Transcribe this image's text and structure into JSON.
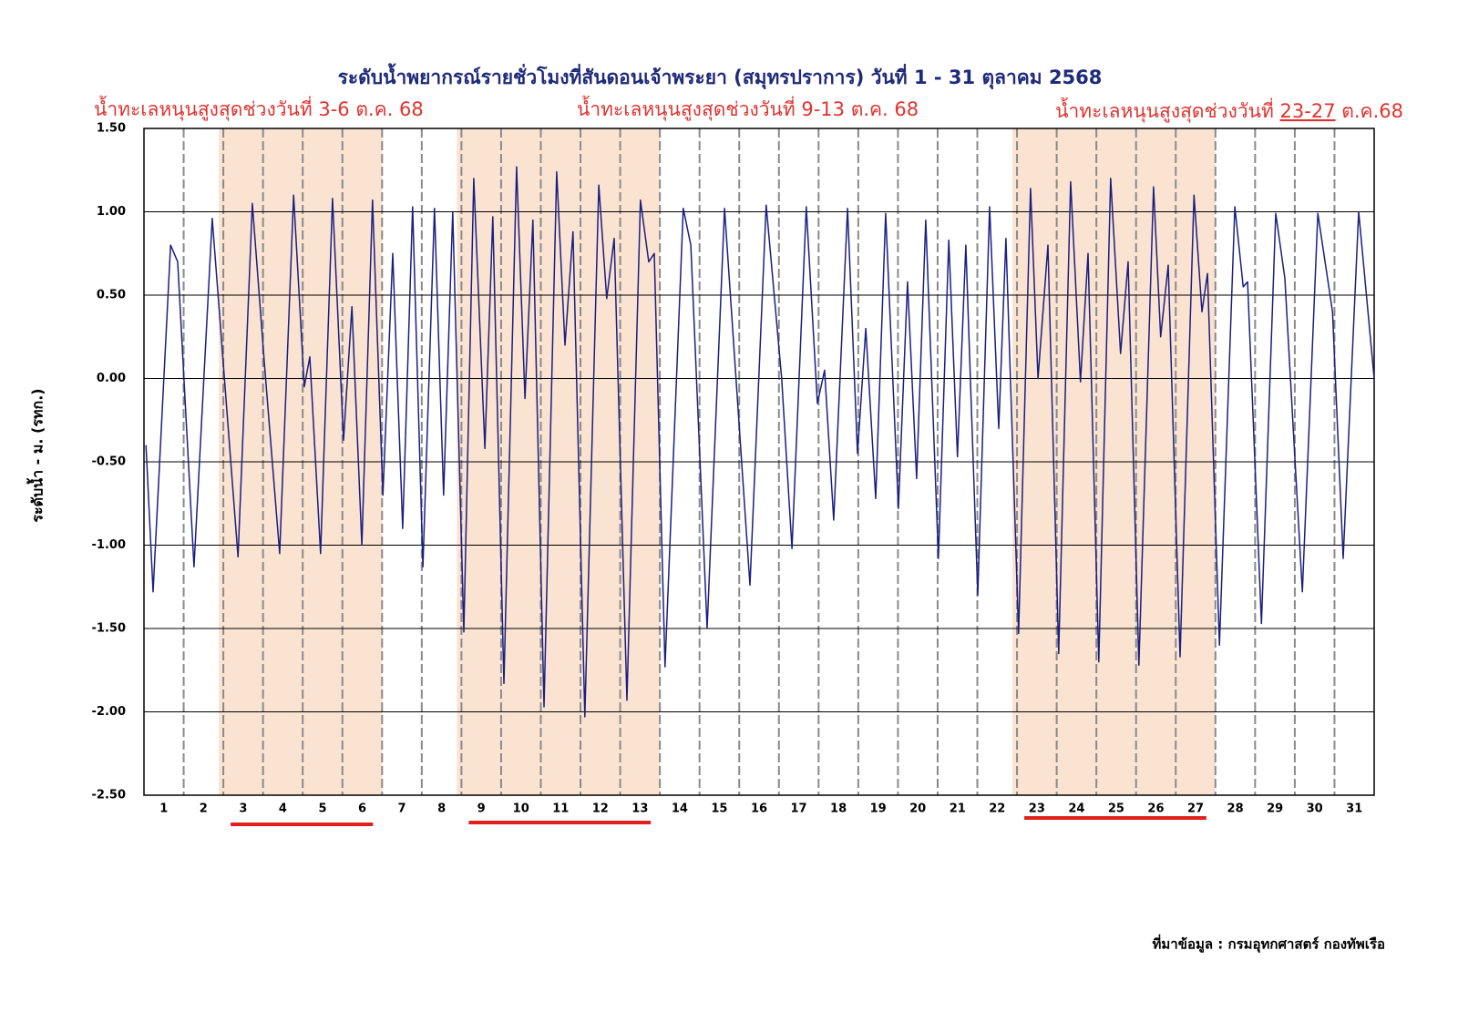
{
  "chart_data": {
    "type": "line",
    "title": "ระดับน้ำพยากรณ์รายชั่วโมงที่สันดอนเจ้าพระยา (สมุทรปราการ) วันที่ 1 - 31 ตุลาคม 2568",
    "annotations": [
      [
        "น้ำทะเลหนุนสูงสุดช่วงวันที่ 3-6 ต.ค. 68"
      ],
      [
        "น้ำทะเลหนุนสูงสุดช่วงวันที่ 9-13 ต.ค. 68"
      ],
      [
        "น้ำทะเลหนุนสูงสุดช่วงวันที่ ",
        "23-27",
        " ต.ค.68"
      ]
    ],
    "y_label": "ระดับน้ำ - ม. (รทก.)",
    "source": "ที่มาข้อมูล : กรมอุทกศาสตร์ กองทัพเรือ",
    "highlight_days": [
      [
        3,
        6
      ],
      [
        9,
        13
      ],
      [
        23,
        27
      ]
    ],
    "highlight_color": "#fbe3d1",
    "xlim": [
      0.5,
      31.5
    ],
    "ylim": [
      -2.5,
      1.5
    ],
    "xticks": [
      1,
      2,
      3,
      4,
      5,
      6,
      7,
      8,
      9,
      10,
      11,
      12,
      13,
      14,
      15,
      16,
      17,
      18,
      19,
      20,
      21,
      22,
      23,
      24,
      25,
      26,
      27,
      28,
      29,
      30,
      31
    ],
    "yticks": [
      {
        "value": 1.5,
        "label": "1.50"
      },
      {
        "value": 1,
        "label": "1.00"
      },
      {
        "value": 0.5,
        "label": "0.50"
      },
      {
        "value": 0,
        "label": "0.00"
      },
      {
        "value": -0.5,
        "label": "-0.50"
      },
      {
        "value": -1,
        "label": "-1.00"
      },
      {
        "value": -1.5,
        "label": "-1.50"
      },
      {
        "value": -2,
        "label": "-2.00"
      },
      {
        "value": -2.5,
        "label": "-2.50"
      }
    ],
    "grid": true,
    "x": [
      0.55,
      0.73,
      1.17,
      1.35,
      1.76,
      2.22,
      2.87,
      3.23,
      3.53,
      3.92,
      4.27,
      4.54,
      4.68,
      4.95,
      5.25,
      5.53,
      5.74,
      5.99,
      6.26,
      6.52,
      6.77,
      7.02,
      7.27,
      7.53,
      7.82,
      8.05,
      8.28,
      8.56,
      8.81,
      9.09,
      9.29,
      9.57,
      9.89,
      10.1,
      10.3,
      10.58,
      10.9,
      11.11,
      11.31,
      11.61,
      11.96,
      12.16,
      12.35,
      12.67,
      13.01,
      13.22,
      13.36,
      13.63,
      14.09,
      14.28,
      14.69,
      15.13,
      15.77,
      16.18,
      16.57,
      16.83,
      17.19,
      17.47,
      17.65,
      17.88,
      18.23,
      18.48,
      18.69,
      18.94,
      19.19,
      19.51,
      19.74,
      19.97,
      20.2,
      20.52,
      20.78,
      21.0,
      21.21,
      21.51,
      21.81,
      22.04,
      22.22,
      22.54,
      22.84,
      23.03,
      23.28,
      23.55,
      23.85,
      24.1,
      24.29,
      24.56,
      24.86,
      25.11,
      25.3,
      25.57,
      25.94,
      26.12,
      26.31,
      26.61,
      26.96,
      27.16,
      27.3,
      27.6,
      27.99,
      28.2,
      28.31,
      28.66,
      29.02,
      29.25,
      29.69,
      30.08,
      30.45,
      30.72,
      31.11,
      31.5
    ],
    "series": [
      {
        "color": "#1a1f80",
        "values": [
          -0.4,
          -1.28,
          0.8,
          0.7,
          -1.13,
          0.96,
          -1.07,
          1.05,
          0.1,
          -1.05,
          1.1,
          -0.05,
          0.13,
          -1.05,
          1.08,
          -0.37,
          0.43,
          -1.0,
          1.07,
          -0.7,
          0.75,
          -0.9,
          1.03,
          -1.13,
          1.02,
          -0.7,
          1.0,
          -1.52,
          1.2,
          -0.42,
          0.97,
          -1.83,
          1.27,
          -0.12,
          0.95,
          -1.97,
          1.24,
          0.2,
          0.88,
          -2.03,
          1.16,
          0.48,
          0.84,
          -1.93,
          1.07,
          0.7,
          0.75,
          -1.73,
          1.02,
          0.8,
          -1.5,
          1.02,
          -1.24,
          1.04,
          0.0,
          -1.02,
          1.03,
          -0.15,
          0.05,
          -0.85,
          1.02,
          -0.45,
          0.3,
          -0.72,
          0.99,
          -0.78,
          0.58,
          -0.6,
          0.95,
          -1.08,
          0.83,
          -0.47,
          0.8,
          -1.3,
          1.03,
          -0.3,
          0.84,
          -1.53,
          1.14,
          0.0,
          0.8,
          -1.65,
          1.18,
          -0.02,
          0.75,
          -1.7,
          1.2,
          0.15,
          0.7,
          -1.72,
          1.15,
          0.25,
          0.68,
          -1.67,
          1.1,
          0.4,
          0.63,
          -1.6,
          1.03,
          0.55,
          0.58,
          -1.47,
          0.99,
          0.6,
          -1.28,
          0.99,
          0.4,
          -1.08,
          1.0,
          0.0
        ]
      }
    ]
  }
}
